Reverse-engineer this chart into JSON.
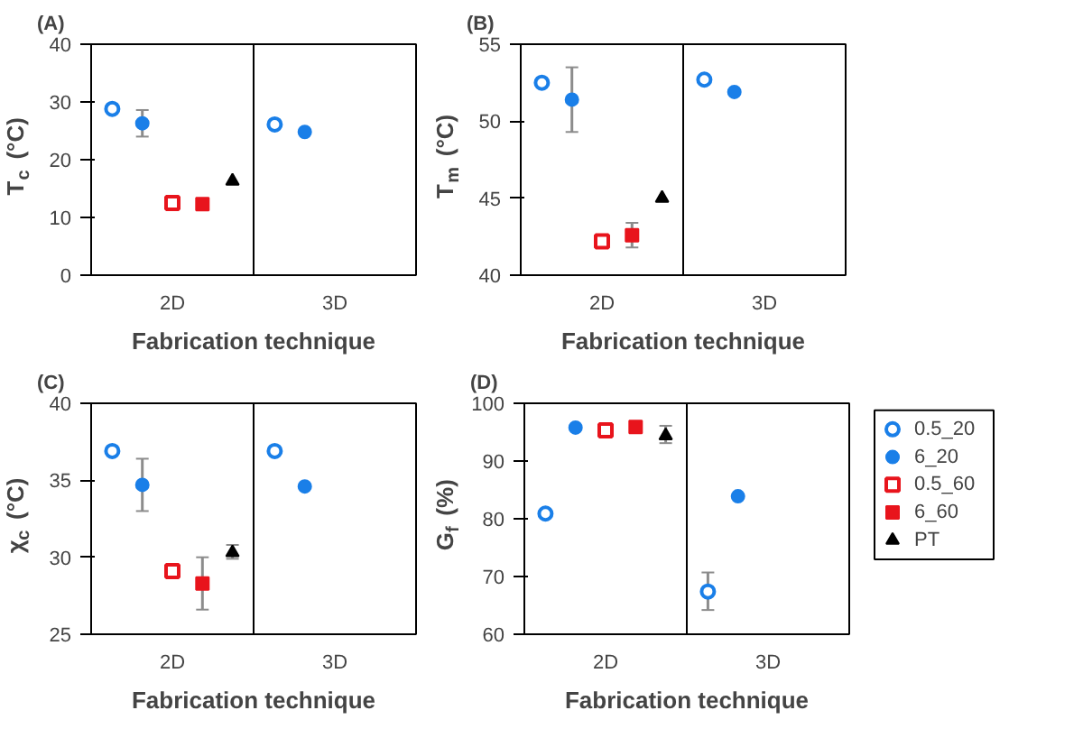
{
  "chart_data": [
    {
      "type": "scatter",
      "title": "(A)",
      "xlabel": "Fabrication technique",
      "ylabel": "T$_{c}$ (°C)",
      "categories": [
        "2D",
        "3D"
      ],
      "ylim": [
        0,
        40
      ],
      "yticks": [
        0,
        10,
        20,
        30,
        40
      ],
      "grid": false,
      "series": [
        {
          "color": "#1a7fe8",
          "marker": "circle",
          "values": [
            28.8,
            26.1
          ]
        },
        {
          "color": "#1a7fe8",
          "marker": "circle",
          "values": [
            26.3,
            24.8
          ],
          "errors": [
            2.3,
            null
          ]
        },
        {
          "color": "#e8141c",
          "marker": "square",
          "values": [
            12.5,
            null
          ]
        },
        {
          "color": "#e8141c",
          "marker": "square",
          "values": [
            12.3,
            null
          ]
        },
        {
          "color": "#000000",
          "marker": "triangle",
          "values": [
            16.3,
            null
          ]
        }
      ]
    },
    {
      "type": "scatter",
      "title": "(B)",
      "xlabel": "Fabrication technique",
      "ylabel": "T$_{m}$ (°C)",
      "categories": [
        "2D",
        "3D"
      ],
      "ylim": [
        40,
        55
      ],
      "yticks": [
        40,
        45,
        50,
        55
      ],
      "grid": false,
      "series": [
        {
          "color": "#1a7fe8",
          "marker": "circle",
          "values": [
            52.5,
            52.7
          ]
        },
        {
          "color": "#1a7fe8",
          "marker": "circle",
          "values": [
            51.4,
            51.9
          ],
          "errors": [
            [
              49.3,
              53.5
            ],
            null
          ]
        },
        {
          "color": "#e8141c",
          "marker": "square",
          "values": [
            42.2,
            null
          ]
        },
        {
          "color": "#e8141c",
          "marker": "square",
          "values": [
            42.6,
            null
          ],
          "errors": [
            0.8,
            null
          ]
        },
        {
          "color": "#000000",
          "marker": "triangle",
          "values": [
            45.0,
            null
          ]
        }
      ]
    },
    {
      "type": "scatter",
      "title": "(C)",
      "xlabel": "Fabrication technique",
      "ylabel": "χ$_{c}$ (°C)",
      "categories": [
        "2D",
        "3D"
      ],
      "ylim": [
        25,
        40
      ],
      "yticks": [
        25,
        30,
        35,
        40
      ],
      "grid": false,
      "series": [
        {
          "color": "#1a7fe8",
          "marker": "circle",
          "values": [
            36.9,
            36.9
          ]
        },
        {
          "color": "#1a7fe8",
          "marker": "circle",
          "values": [
            34.7,
            34.6
          ],
          "errors": [
            [
              33.0,
              36.4
            ],
            null
          ]
        },
        {
          "color": "#e8141c",
          "marker": "square",
          "values": [
            29.1,
            null
          ]
        },
        {
          "color": "#e8141c",
          "marker": "square",
          "values": [
            28.3,
            null
          ],
          "errors": [
            [
              26.6,
              30.0
            ],
            null
          ]
        },
        {
          "color": "#000000",
          "marker": "triangle",
          "values": [
            30.3,
            null
          ],
          "errors": [
            [
              29.9,
              30.8
            ],
            null
          ]
        }
      ]
    },
    {
      "type": "scatter",
      "title": "(D)",
      "xlabel": "Fabrication technique",
      "ylabel": "G$_{f}$ (%)",
      "categories": [
        "2D",
        "3D"
      ],
      "ylim": [
        60,
        100
      ],
      "yticks": [
        60,
        70,
        80,
        90,
        100
      ],
      "grid": false,
      "legend": "right",
      "series": [
        {
          "name": "0.5_20",
          "color": "#1a7fe8",
          "marker": "circle",
          "values": [
            80.9,
            67.4
          ],
          "errors": [
            null,
            [
              64.2,
              70.7
            ]
          ]
        },
        {
          "name": "6_20",
          "color": "#1a7fe8",
          "marker": "circle",
          "values": [
            95.8,
            83.9
          ]
        },
        {
          "name": "0.5_60",
          "color": "#e8141c",
          "marker": "square",
          "values": [
            95.3,
            null
          ]
        },
        {
          "name": "6_60",
          "color": "#e8141c",
          "marker": "square",
          "values": [
            95.9,
            null
          ]
        },
        {
          "name": "PT",
          "color": "#000000",
          "marker": "triangle",
          "values": [
            94.4,
            null
          ],
          "errors": [
            [
              93.1,
              96.1
            ],
            null
          ]
        }
      ]
    }
  ]
}
